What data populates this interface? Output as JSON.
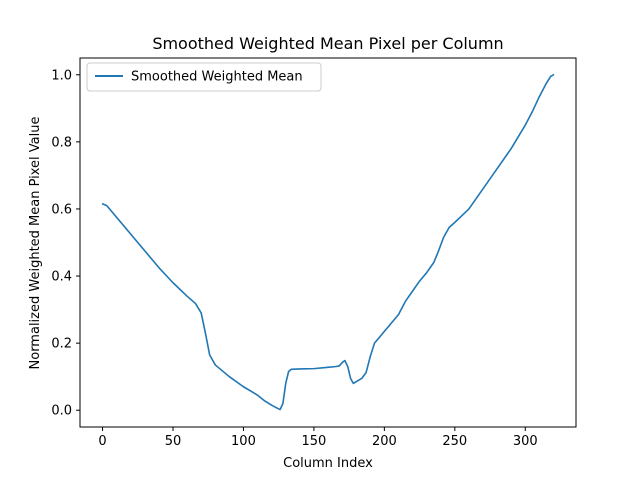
{
  "chart_data": {
    "type": "line",
    "title": "Smoothed Weighted Mean Pixel per Column",
    "xlabel": "Column Index",
    "ylabel": "Normalized Weighted Mean Pixel Value",
    "xlim": [
      -16,
      336
    ],
    "ylim": [
      -0.05,
      1.05
    ],
    "xticks": [
      0,
      50,
      100,
      150,
      200,
      250,
      300
    ],
    "yticks": [
      0.0,
      0.2,
      0.4,
      0.6,
      0.8,
      1.0
    ],
    "xtick_labels": [
      "0",
      "50",
      "100",
      "150",
      "200",
      "250",
      "300"
    ],
    "ytick_labels": [
      "0.0",
      "0.2",
      "0.4",
      "0.6",
      "0.8",
      "1.0"
    ],
    "grid": false,
    "legend_position": "top-left",
    "colors": {
      "series": "#1f77b4"
    },
    "series": [
      {
        "name": "Smoothed Weighted Mean",
        "x": [
          0,
          3,
          10,
          20,
          30,
          40,
          50,
          60,
          66,
          70,
          73,
          76,
          80,
          90,
          100,
          110,
          115,
          120,
          124,
          126,
          128,
          130,
          132,
          134,
          140,
          150,
          160,
          165,
          168,
          170,
          172,
          174,
          176,
          178,
          180,
          184,
          187,
          190,
          193,
          200,
          210,
          215,
          220,
          225,
          230,
          235,
          238,
          242,
          246,
          250,
          255,
          260,
          270,
          280,
          290,
          300,
          305,
          310,
          315,
          318,
          320
        ],
        "y": [
          0.615,
          0.61,
          0.575,
          0.525,
          0.475,
          0.425,
          0.38,
          0.34,
          0.318,
          0.29,
          0.23,
          0.165,
          0.135,
          0.1,
          0.07,
          0.045,
          0.028,
          0.015,
          0.006,
          0.002,
          0.02,
          0.08,
          0.115,
          0.122,
          0.123,
          0.124,
          0.128,
          0.13,
          0.132,
          0.142,
          0.148,
          0.13,
          0.095,
          0.08,
          0.085,
          0.095,
          0.112,
          0.16,
          0.2,
          0.235,
          0.285,
          0.325,
          0.355,
          0.385,
          0.41,
          0.44,
          0.47,
          0.515,
          0.545,
          0.56,
          0.58,
          0.6,
          0.66,
          0.72,
          0.78,
          0.85,
          0.89,
          0.935,
          0.975,
          0.995,
          1.0
        ]
      }
    ]
  }
}
